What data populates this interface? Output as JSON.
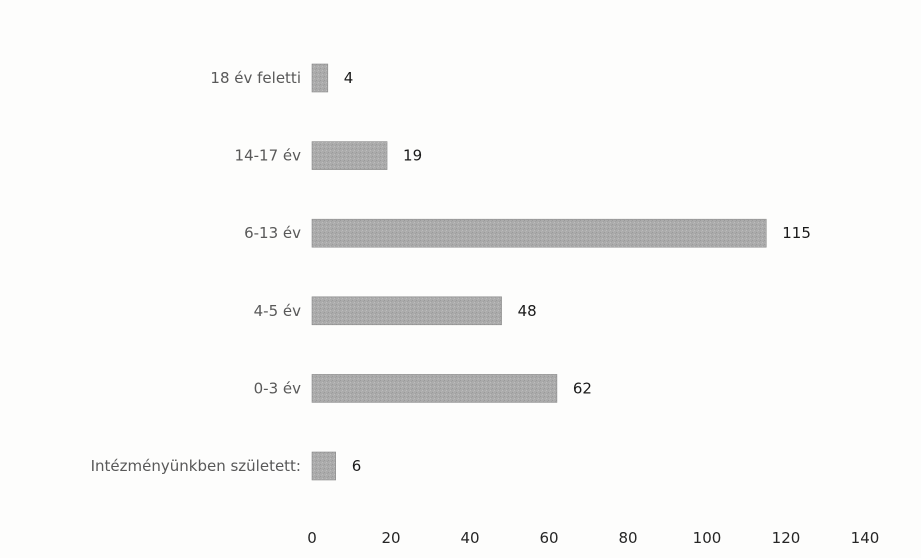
{
  "chart_data": {
    "type": "bar",
    "orientation": "horizontal",
    "categories": [
      "18 év feletti",
      "14-17 év",
      "6-13 év",
      "4-5 év",
      "0-3 év",
      "Intézményünkben született:"
    ],
    "values": [
      4,
      19,
      115,
      48,
      62,
      6
    ],
    "xlim": [
      0,
      140
    ],
    "xticks": [
      0,
      20,
      40,
      60,
      80,
      100,
      120,
      140
    ],
    "title": "",
    "xlabel": "",
    "ylabel": "",
    "grid": false,
    "legend": "none",
    "bar_color": "#a9a9a9"
  }
}
